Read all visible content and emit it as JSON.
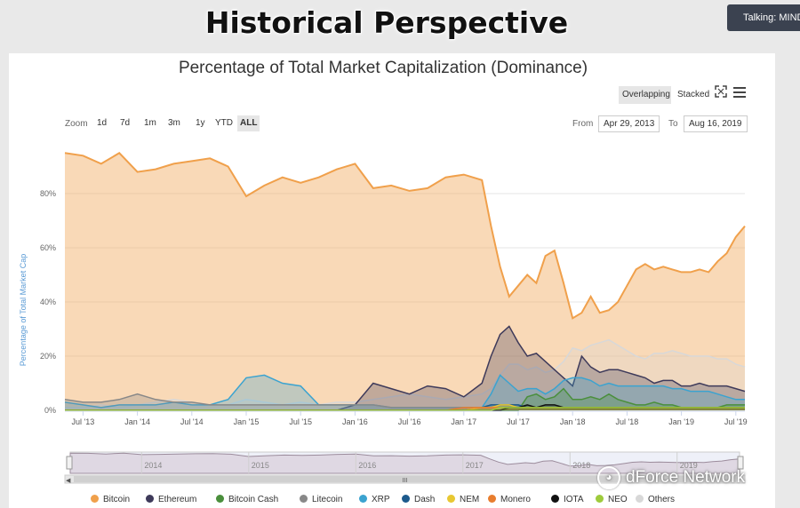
{
  "banner": {
    "title": "Historical Perspective"
  },
  "notification": {
    "text": "Talking: MINDA"
  },
  "chart_toolbar": {
    "modes": [
      "Overlapping",
      "Stacked"
    ],
    "active_mode": "Overlapping",
    "fullscreen_icon": "expand-icon",
    "menu_icon": "hamburger-menu-icon"
  },
  "range_selector": {
    "zoom_label": "Zoom",
    "buttons": [
      "1d",
      "7d",
      "1m",
      "3m",
      "1y",
      "YTD",
      "ALL"
    ],
    "active": "ALL",
    "from_label": "From",
    "from_value": "Apr 29, 2013",
    "to_label": "To",
    "to_value": "Aug 16, 2019"
  },
  "navigator": {
    "year_labels": [
      "2014",
      "2015",
      "2016",
      "2017",
      "2018",
      "2019"
    ],
    "scroll_handle": "III"
  },
  "watermark": {
    "text": "dForce Network",
    "logo_icon": "wechat-logo-icon"
  },
  "chart_data": {
    "type": "area",
    "title": "Percentage of Total Market Capitalization (Dominance)",
    "ylabel": "Percentage of Total Market Cap",
    "xlabel": "",
    "ylim": [
      0,
      100
    ],
    "y_ticks": [
      "0%",
      "20%",
      "40%",
      "60%",
      "80%"
    ],
    "x_ticks": [
      "Jul '13",
      "Jan '14",
      "Jul '14",
      "Jan '15",
      "Jul '15",
      "Jan '16",
      "Jul '16",
      "Jan '17",
      "Jul '17",
      "Jan '18",
      "Jul '18",
      "Jan '19",
      "Jul '19"
    ],
    "x": [
      "2013-05",
      "2013-07",
      "2013-09",
      "2013-11",
      "2014-01",
      "2014-03",
      "2014-05",
      "2014-07",
      "2014-09",
      "2014-11",
      "2015-01",
      "2015-03",
      "2015-05",
      "2015-07",
      "2015-09",
      "2015-11",
      "2016-01",
      "2016-03",
      "2016-05",
      "2016-07",
      "2016-09",
      "2016-11",
      "2017-01",
      "2017-03",
      "2017-04",
      "2017-05",
      "2017-06",
      "2017-07",
      "2017-08",
      "2017-09",
      "2017-10",
      "2017-11",
      "2017-12",
      "2018-01",
      "2018-02",
      "2018-03",
      "2018-04",
      "2018-05",
      "2018-06",
      "2018-07",
      "2018-08",
      "2018-09",
      "2018-10",
      "2018-11",
      "2018-12",
      "2019-01",
      "2019-02",
      "2019-03",
      "2019-04",
      "2019-05",
      "2019-06",
      "2019-07",
      "2019-08"
    ],
    "series": [
      {
        "name": "Bitcoin",
        "color": "#f0a04b",
        "values": [
          95,
          94,
          91,
          95,
          88,
          89,
          91,
          92,
          93,
          90,
          79,
          83,
          86,
          84,
          86,
          89,
          91,
          82,
          83,
          81,
          82,
          86,
          87,
          85,
          68,
          53,
          42,
          46,
          50,
          47,
          57,
          59,
          47,
          34,
          36,
          42,
          36,
          37,
          40,
          46,
          52,
          54,
          52,
          53,
          52,
          51,
          51,
          52,
          51,
          55,
          58,
          64,
          68
        ]
      },
      {
        "name": "Ethereum",
        "color": "#3e3a5a",
        "values": [
          0,
          0,
          0,
          0,
          0,
          0,
          0,
          0,
          0,
          0,
          0,
          0,
          0,
          0,
          0,
          0,
          2,
          10,
          8,
          6,
          9,
          8,
          5,
          10,
          20,
          28,
          31,
          25,
          20,
          21,
          18,
          15,
          12,
          9,
          20,
          16,
          14,
          15,
          15,
          14,
          13,
          12,
          10,
          11,
          11,
          9,
          9,
          10,
          9,
          9,
          9,
          8,
          7
        ]
      },
      {
        "name": "Bitcoin Cash",
        "color": "#4a8f3c",
        "values": [
          0,
          0,
          0,
          0,
          0,
          0,
          0,
          0,
          0,
          0,
          0,
          0,
          0,
          0,
          0,
          0,
          0,
          0,
          0,
          0,
          0,
          0,
          0,
          0,
          0,
          0,
          0,
          0,
          5,
          6,
          4,
          5,
          8,
          4,
          4,
          5,
          4,
          6,
          4,
          3,
          2,
          2,
          3,
          2,
          2,
          1,
          1,
          1,
          1,
          1,
          2,
          2,
          2
        ]
      },
      {
        "name": "Litecoin",
        "color": "#888888",
        "values": [
          4,
          3,
          3,
          4,
          6,
          4,
          3,
          3,
          2,
          2,
          2,
          2,
          2,
          2,
          2,
          2,
          2,
          2,
          1,
          1,
          1,
          1,
          1,
          1,
          1,
          2,
          2,
          2,
          1,
          1,
          1,
          1,
          1,
          1,
          1,
          1,
          1,
          1,
          1,
          1,
          1,
          1,
          1,
          1,
          1,
          1,
          1,
          1,
          1,
          1,
          1,
          1,
          1
        ]
      },
      {
        "name": "XRP",
        "color": "#3ba3d0",
        "values": [
          3,
          2,
          1,
          2,
          2,
          2,
          3,
          2,
          2,
          4,
          12,
          13,
          10,
          9,
          2,
          2,
          2,
          2,
          1,
          1,
          1,
          1,
          1,
          1,
          6,
          13,
          10,
          7,
          8,
          8,
          6,
          8,
          11,
          12,
          12,
          11,
          9,
          10,
          9,
          9,
          9,
          9,
          9,
          9,
          8,
          8,
          7,
          7,
          7,
          6,
          5,
          4,
          4
        ]
      },
      {
        "name": "Dash",
        "color": "#1c5a8c",
        "values": [
          0,
          0,
          0,
          0,
          0,
          0,
          0,
          0,
          0,
          0,
          0,
          0,
          0,
          0,
          0,
          0,
          0,
          0,
          0,
          0,
          0,
          0,
          0,
          1,
          2,
          2,
          2,
          2,
          1,
          1,
          1,
          1,
          1,
          1,
          1,
          1,
          1,
          1,
          1,
          1,
          1,
          1,
          1,
          1,
          1,
          1,
          1,
          1,
          1,
          1,
          1,
          1,
          1
        ]
      },
      {
        "name": "NEM",
        "color": "#e8c832",
        "values": [
          0,
          0,
          0,
          0,
          0,
          0,
          0,
          0,
          0,
          0,
          0,
          0,
          0,
          0,
          0,
          0,
          0,
          0,
          0,
          0,
          0,
          0,
          0,
          1,
          1,
          2,
          2,
          1,
          1,
          1,
          1,
          1,
          1,
          1,
          1,
          1,
          1,
          1,
          1,
          1,
          1,
          1,
          1,
          1,
          1,
          1,
          1,
          1,
          1,
          1,
          1,
          1,
          1
        ]
      },
      {
        "name": "Monero",
        "color": "#e87d2e",
        "values": [
          0,
          0,
          0,
          0,
          0,
          0,
          0,
          0,
          0,
          0,
          0,
          0,
          0,
          0,
          0,
          0,
          0,
          0,
          0,
          0,
          0,
          0,
          1,
          1,
          1,
          1,
          1,
          1,
          1,
          1,
          1,
          1,
          1,
          1,
          1,
          1,
          1,
          1,
          1,
          1,
          1,
          1,
          1,
          1,
          1,
          1,
          1,
          1,
          1,
          1,
          1,
          1,
          1
        ]
      },
      {
        "name": "IOTA",
        "color": "#111111",
        "values": [
          0,
          0,
          0,
          0,
          0,
          0,
          0,
          0,
          0,
          0,
          0,
          0,
          0,
          0,
          0,
          0,
          0,
          0,
          0,
          0,
          0,
          0,
          0,
          0,
          0,
          0,
          1,
          1,
          2,
          1,
          2,
          2,
          1,
          1,
          1,
          1,
          1,
          1,
          1,
          1,
          1,
          1,
          1,
          1,
          1,
          1,
          1,
          1,
          1,
          1,
          1,
          1,
          1
        ]
      },
      {
        "name": "NEO",
        "color": "#9ecb3c",
        "values": [
          0,
          0,
          0,
          0,
          0,
          0,
          0,
          0,
          0,
          0,
          0,
          0,
          0,
          0,
          0,
          0,
          0,
          0,
          0,
          0,
          0,
          0,
          0,
          0,
          0,
          1,
          1,
          1,
          1,
          1,
          1,
          1,
          1,
          1,
          1,
          1,
          1,
          1,
          1,
          1,
          1,
          1,
          1,
          1,
          1,
          1,
          1,
          1,
          1,
          1,
          1,
          1,
          1
        ]
      },
      {
        "name": "Others",
        "color": "#d8d8d8",
        "values": [
          1,
          1,
          2,
          1,
          2,
          3,
          4,
          3,
          2,
          2,
          4,
          3,
          2,
          3,
          2,
          3,
          3,
          4,
          5,
          6,
          5,
          4,
          5,
          6,
          8,
          13,
          17,
          17,
          15,
          16,
          14,
          15,
          18,
          23,
          22,
          24,
          25,
          26,
          24,
          22,
          20,
          19,
          21,
          21,
          22,
          21,
          20,
          20,
          20,
          19,
          19,
          17,
          16
        ]
      }
    ],
    "legend_position": "bottom",
    "grid": true
  }
}
